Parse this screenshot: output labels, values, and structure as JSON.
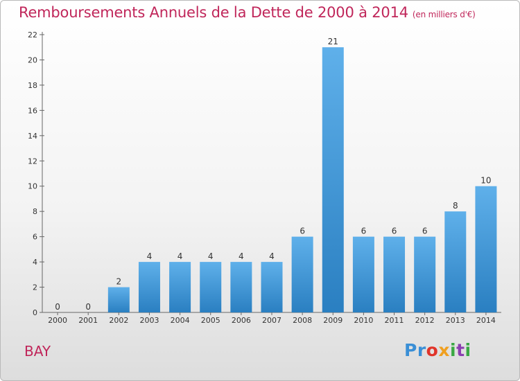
{
  "title": "Remboursements Annuels de la Dette de 2000 à 2014",
  "unit_note": "(en milliers d'€)",
  "place_label": "BAY",
  "logo": {
    "text": "Proxiti",
    "colors": [
      "#3a8fd6",
      "#e0342a",
      "#f0a020",
      "#3aa843",
      "#8b3fb0"
    ]
  },
  "colors": {
    "title": "#c0265a",
    "bar_top": "#5fb0ea",
    "bar_bottom": "#2a7fc1"
  },
  "chart_data": {
    "type": "bar",
    "categories": [
      "2000",
      "2001",
      "2002",
      "2003",
      "2004",
      "2005",
      "2006",
      "2007",
      "2008",
      "2009",
      "2010",
      "2011",
      "2012",
      "2013",
      "2014"
    ],
    "values": [
      0,
      0,
      2,
      4,
      4,
      4,
      4,
      4,
      6,
      21,
      6,
      6,
      6,
      8,
      10
    ],
    "title": "Remboursements Annuels de la Dette de 2000 à 2014",
    "xlabel": "",
    "ylabel": "",
    "ylim": [
      0,
      22
    ],
    "yticks": [
      0,
      2,
      4,
      6,
      8,
      10,
      12,
      14,
      16,
      18,
      20,
      22
    ],
    "grid": false,
    "legend": "none"
  }
}
